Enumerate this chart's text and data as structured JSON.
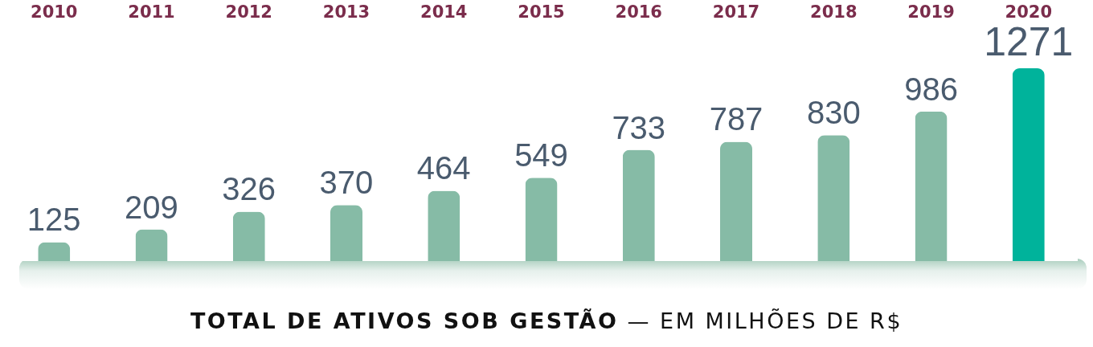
{
  "chart_data": {
    "type": "bar",
    "title": "TOTAL DE ATIVOS SOB GESTÃO",
    "subtitle": "— EM MILHÕES DE R$",
    "categories": [
      "2010",
      "2011",
      "2012",
      "2013",
      "2014",
      "2015",
      "2016",
      "2017",
      "2018",
      "2019",
      "2020"
    ],
    "values": [
      125,
      209,
      326,
      370,
      464,
      549,
      733,
      787,
      830,
      986,
      1271
    ],
    "colors": [
      "#86bba6",
      "#86bba6",
      "#86bba6",
      "#86bba6",
      "#86bba6",
      "#86bba6",
      "#86bba6",
      "#86bba6",
      "#86bba6",
      "#86bba6",
      "#00b39b"
    ],
    "data_labels": true
  }
}
